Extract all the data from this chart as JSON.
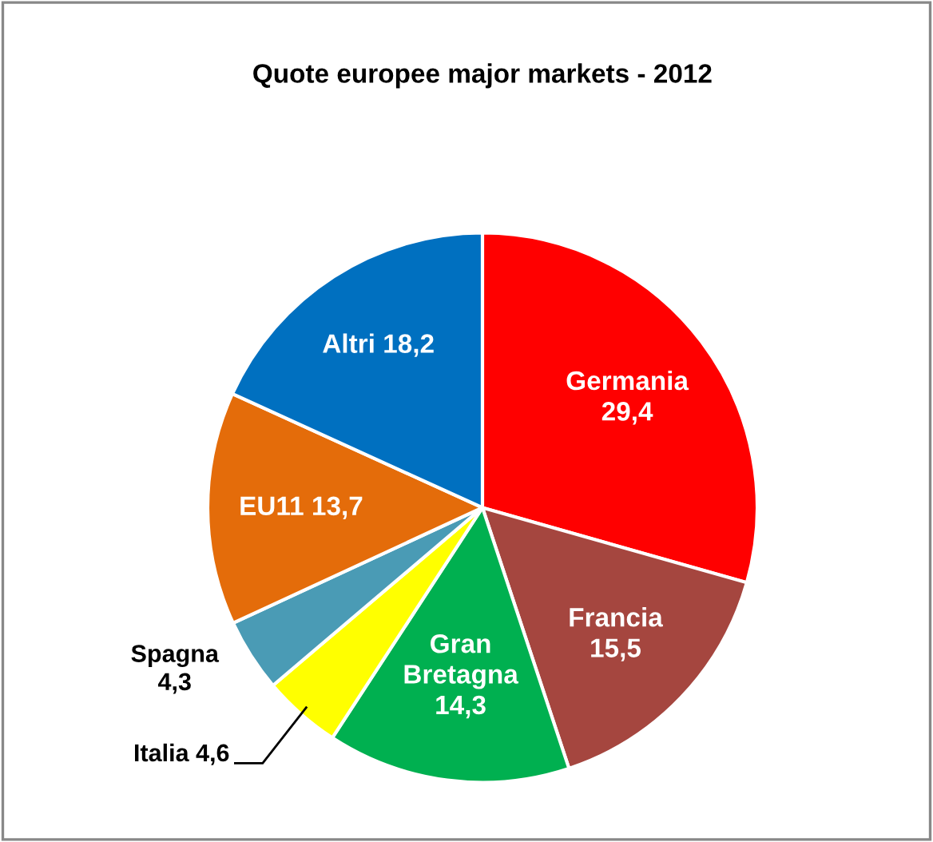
{
  "chart_data": {
    "type": "pie",
    "title": "Quote europee major markets - 2012",
    "categories": [
      "Germania",
      "Francia",
      "Gran Bretagna",
      "Italia",
      "Spagna",
      "EU11",
      "Altri"
    ],
    "values": [
      29.4,
      15.5,
      14.3,
      4.6,
      4.3,
      13.7,
      18.2
    ],
    "value_labels": [
      "29,4",
      "15,5",
      "14,3",
      "4,6",
      "4,3",
      "13,7",
      "18,2"
    ],
    "colors": [
      "#ff0000",
      "#a5463f",
      "#00b050",
      "#ffff00",
      "#4a9bb5",
      "#e46c0a",
      "#0070c0"
    ],
    "legend": false
  }
}
